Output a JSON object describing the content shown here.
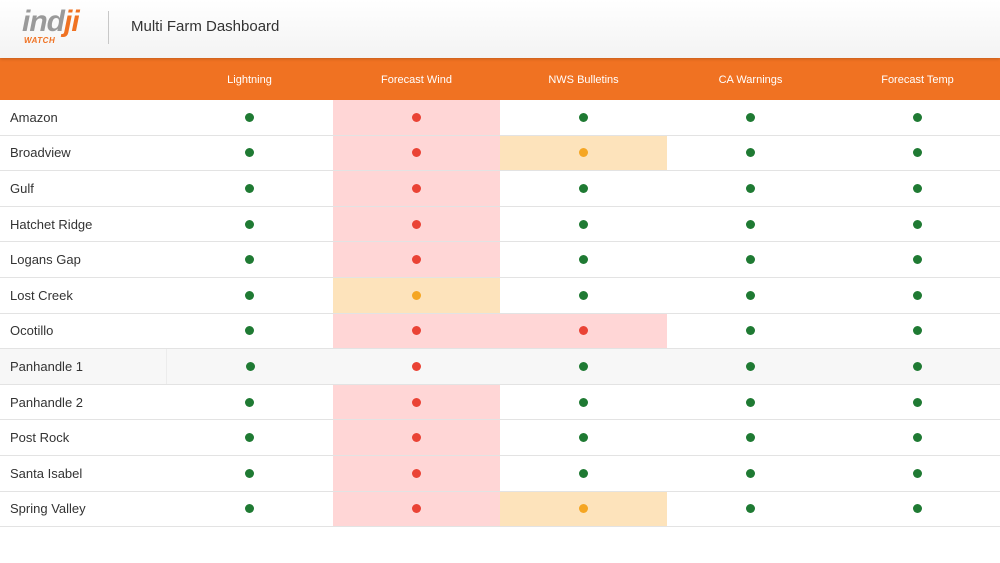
{
  "app": {
    "logo_main_a": "ind",
    "logo_main_b": "ji",
    "logo_sub": "WATCH",
    "title": "Multi Farm Dashboard"
  },
  "colors": {
    "header_bar": "#f07222",
    "status_good": "#1f7a33",
    "status_alert": "#ea4335",
    "status_warn": "#f5a623",
    "bg_alert": "#ffd6d6",
    "bg_warn": "#fde3bb",
    "bg_neutral": "#f7f7f7"
  },
  "columns": [
    "Lightning",
    "Forecast Wind",
    "NWS Bulletins",
    "CA Warnings",
    "Forecast Temp"
  ],
  "rows": [
    {
      "name": "Amazon",
      "status": [
        "good",
        "alert",
        "good",
        "good",
        "good"
      ],
      "highlight": [
        null,
        "alert",
        null,
        null,
        null
      ]
    },
    {
      "name": "Broadview",
      "status": [
        "good",
        "alert",
        "warn",
        "good",
        "good"
      ],
      "highlight": [
        null,
        "alert",
        "warn",
        null,
        null
      ]
    },
    {
      "name": "Gulf",
      "status": [
        "good",
        "alert",
        "good",
        "good",
        "good"
      ],
      "highlight": [
        null,
        "alert",
        null,
        null,
        null
      ]
    },
    {
      "name": "Hatchet Ridge",
      "status": [
        "good",
        "alert",
        "good",
        "good",
        "good"
      ],
      "highlight": [
        null,
        "alert",
        null,
        null,
        null
      ]
    },
    {
      "name": "Logans Gap",
      "status": [
        "good",
        "alert",
        "good",
        "good",
        "good"
      ],
      "highlight": [
        null,
        "alert",
        null,
        null,
        null
      ]
    },
    {
      "name": "Lost Creek",
      "status": [
        "good",
        "warn",
        "good",
        "good",
        "good"
      ],
      "highlight": [
        null,
        "warn",
        null,
        null,
        null
      ]
    },
    {
      "name": "Ocotillo",
      "status": [
        "good",
        "alert",
        "alert",
        "good",
        "good"
      ],
      "highlight": [
        null,
        "alert",
        "alert",
        null,
        null
      ]
    },
    {
      "name": "Panhandle 1",
      "status": [
        "good",
        "alert",
        "good",
        "good",
        "good"
      ],
      "highlight": [
        "neutral",
        "neutral",
        "neutral",
        "neutral",
        "neutral"
      ],
      "row_bg": "neutral"
    },
    {
      "name": "Panhandle 2",
      "status": [
        "good",
        "alert",
        "good",
        "good",
        "good"
      ],
      "highlight": [
        null,
        "alert",
        null,
        null,
        null
      ]
    },
    {
      "name": "Post Rock",
      "status": [
        "good",
        "alert",
        "good",
        "good",
        "good"
      ],
      "highlight": [
        null,
        "alert",
        null,
        null,
        null
      ]
    },
    {
      "name": "Santa Isabel",
      "status": [
        "good",
        "alert",
        "good",
        "good",
        "good"
      ],
      "highlight": [
        null,
        "alert",
        null,
        null,
        null
      ]
    },
    {
      "name": "Spring Valley",
      "status": [
        "good",
        "alert",
        "warn",
        "good",
        "good"
      ],
      "highlight": [
        null,
        "alert",
        "warn",
        null,
        null
      ]
    }
  ]
}
